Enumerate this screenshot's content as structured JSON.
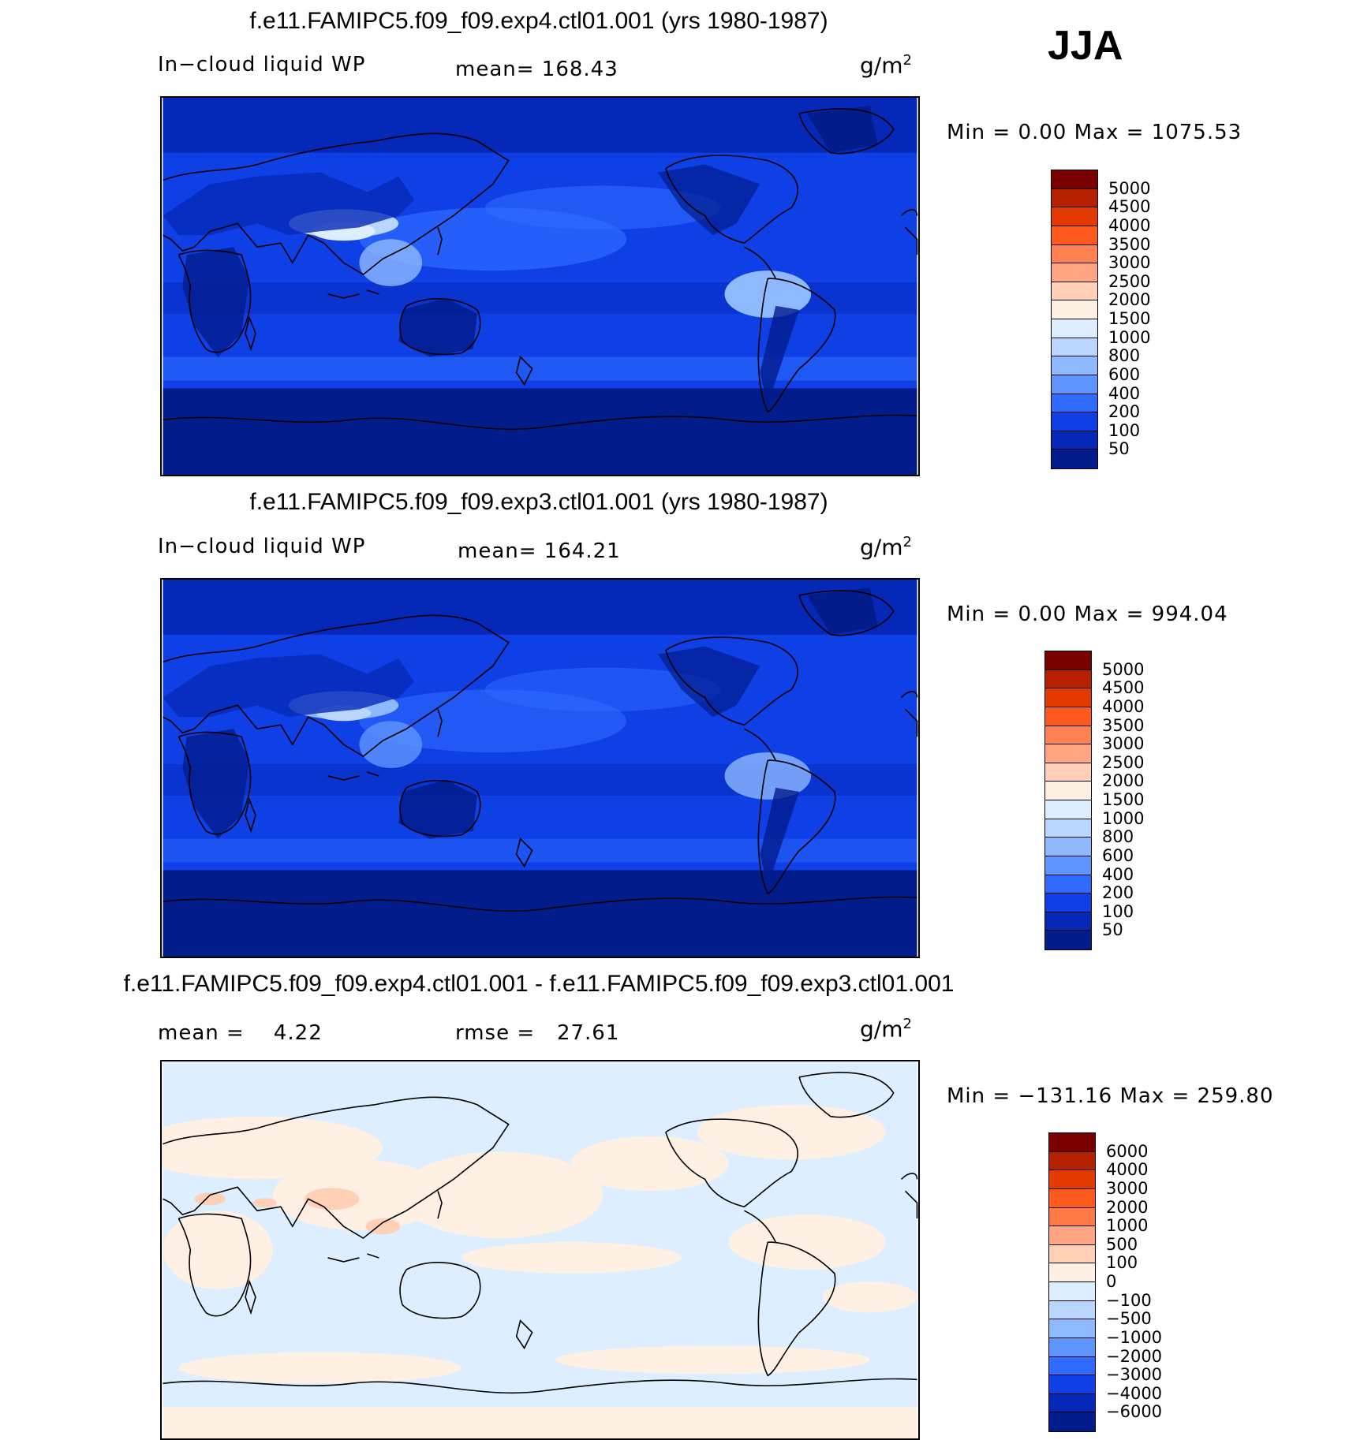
{
  "season": "JJA",
  "panels": [
    {
      "title": "f.e11.FAMIPC5.f09_f09.exp4.ctl01.001 (yrs 1980-1987)",
      "variable": "In−cloud liquid WP",
      "stat1": "mean= 168.43",
      "stat2": "",
      "units_base": "g/m",
      "units_exp": "2",
      "minmax": "Min =    0.00 Max = 1075.53",
      "colorbar": {
        "labels": [
          "5000",
          "4500",
          "4000",
          "3500",
          "3000",
          "2500",
          "2000",
          "1500",
          "1000",
          "800",
          "600",
          "400",
          "200",
          "100",
          "50"
        ],
        "colors": [
          "#7a0000",
          "#b52000",
          "#e33a00",
          "#ff5a1e",
          "#ff8050",
          "#ffa582",
          "#ffd0b6",
          "#fff0e4",
          "#dceeff",
          "#b8d6ff",
          "#8fb9ff",
          "#5f95ff",
          "#2f6bff",
          "#0f40e6",
          "#0628b8",
          "#021c8c"
        ]
      }
    },
    {
      "title": "f.e11.FAMIPC5.f09_f09.exp3.ctl01.001 (yrs 1980-1987)",
      "variable": "In−cloud liquid WP",
      "stat1": "mean= 164.21",
      "stat2": "",
      "units_base": "g/m",
      "units_exp": "2",
      "minmax": "Min =    0.00 Max = 994.04",
      "colorbar": {
        "labels": [
          "5000",
          "4500",
          "4000",
          "3500",
          "3000",
          "2500",
          "2000",
          "1500",
          "1000",
          "800",
          "600",
          "400",
          "200",
          "100",
          "50"
        ],
        "colors": [
          "#7a0000",
          "#b52000",
          "#e33a00",
          "#ff5a1e",
          "#ff8050",
          "#ffa582",
          "#ffd0b6",
          "#fff0e4",
          "#dceeff",
          "#b8d6ff",
          "#8fb9ff",
          "#5f95ff",
          "#2f6bff",
          "#0f40e6",
          "#0628b8",
          "#021c8c"
        ]
      }
    },
    {
      "title": "f.e11.FAMIPC5.f09_f09.exp4.ctl01.001 - f.e11.FAMIPC5.f09_f09.exp3.ctl01.001",
      "variable": "",
      "stat1": "mean =    4.22",
      "stat2": "rmse =   27.61",
      "units_base": "g/m",
      "units_exp": "2",
      "minmax": "Min = −131.16 Max = 259.80",
      "colorbar": {
        "labels": [
          "6000",
          "4000",
          "3000",
          "2000",
          "1000",
          "500",
          "100",
          "0",
          "−100",
          "−500",
          "−1000",
          "−2000",
          "−3000",
          "−4000",
          "−6000"
        ],
        "colors": [
          "#7a0000",
          "#b52000",
          "#e33a00",
          "#ff5a1e",
          "#ff7a45",
          "#ffa582",
          "#ffd0b6",
          "#fff0e4",
          "#dceeff",
          "#b8d6ff",
          "#8fb9ff",
          "#5f95ff",
          "#2f6bff",
          "#0f40e6",
          "#0628b8",
          "#021c8c"
        ]
      }
    }
  ]
}
